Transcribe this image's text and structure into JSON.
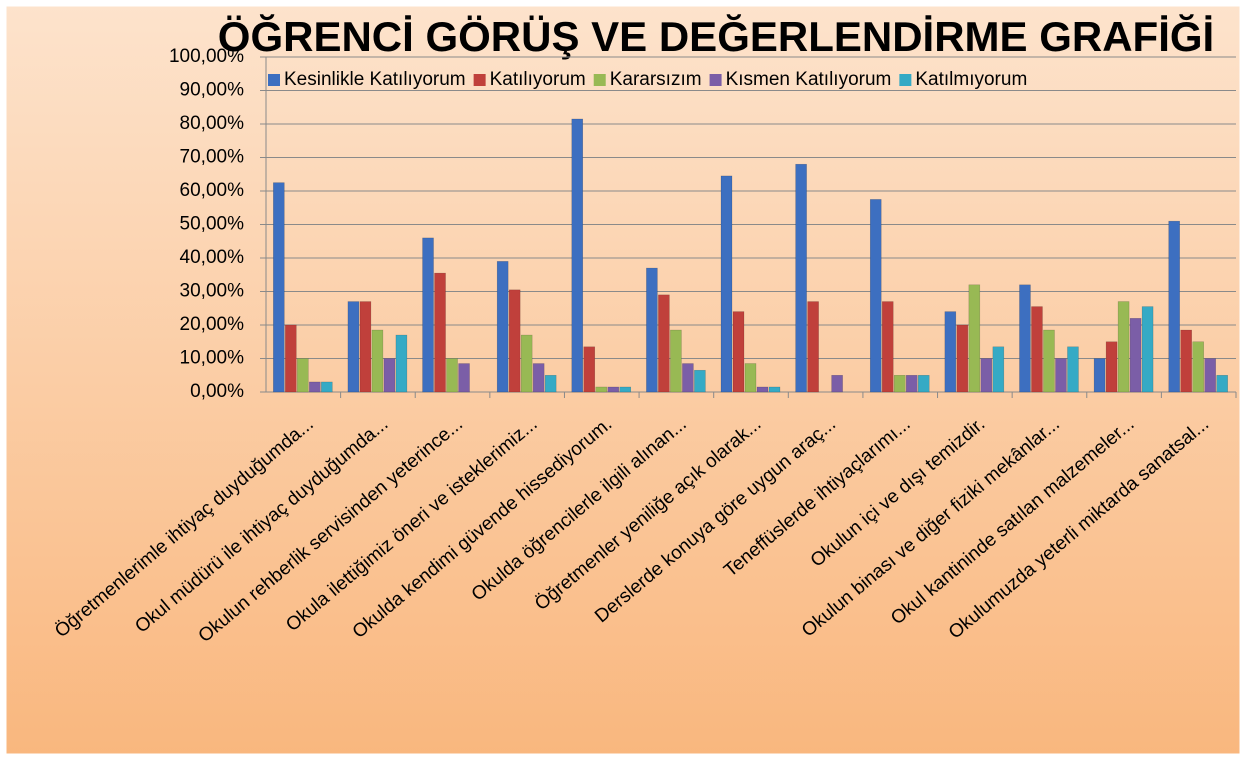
{
  "chart_data": {
    "type": "bar",
    "title": "ÖĞRENCİ GÖRÜŞ VE DEĞERLENDİRME GRAFİĞİ",
    "categories": [
      "Öğretmenlerimle ihtiyaç duyduğumda...",
      "Okul müdürü ile ihtiyaç duyduğumda...",
      "Okulun rehberlik servisinden yeterince...",
      "Okula ilettiğimiz öneri ve isteklerimiz...",
      "Okulda kendimi güvende hissediyorum.",
      "Okulda öğrencilerle ilgili alınan...",
      "Öğretmenler yeniliğe açık olarak...",
      "Derslerde konuya göre uygun araç...",
      "Teneffüslerde ihtiyaçlarımı...",
      "Okulun içi ve dışı temizdir.",
      "Okulun binası ve diğer fiziki mekânlar...",
      "Okul kantininde satılan malzemeler...",
      "Okulumuzda yeterli miktarda sanatsal..."
    ],
    "series": [
      {
        "name": "Kesinlikle Katılıyorum",
        "color": "#3d6fc0",
        "values": [
          62.5,
          27,
          46,
          39,
          81.5,
          37,
          64.5,
          68,
          57.5,
          24,
          32,
          10,
          51
        ]
      },
      {
        "name": "Katılıyorum",
        "color": "#c0403b",
        "values": [
          20,
          27,
          35.5,
          30.5,
          13.5,
          29,
          24,
          27,
          27,
          20,
          25.5,
          15,
          18.5
        ]
      },
      {
        "name": "Kararsızım",
        "color": "#98b954",
        "values": [
          10,
          18.5,
          10,
          17,
          1.5,
          18.5,
          8.5,
          0,
          5,
          32,
          18.5,
          27,
          15
        ]
      },
      {
        "name": "Kısmen Katılıyorum",
        "color": "#7b5ea7",
        "values": [
          3,
          10,
          8.5,
          8.5,
          1.5,
          8.5,
          1.5,
          5,
          5,
          10,
          10,
          22,
          10
        ]
      },
      {
        "name": "Katılmıyorum",
        "color": "#35aac5",
        "values": [
          3,
          17,
          0,
          5,
          1.5,
          6.5,
          1.5,
          0,
          5,
          13.5,
          13.5,
          25.5,
          5
        ]
      }
    ],
    "ylim": [
      0,
      100
    ],
    "yticks": [
      {
        "value": 0,
        "label": "0,00%"
      },
      {
        "value": 10,
        "label": "10,00%"
      },
      {
        "value": 20,
        "label": "20,00%"
      },
      {
        "value": 30,
        "label": "30,00%"
      },
      {
        "value": 40,
        "label": "40,00%"
      },
      {
        "value": 50,
        "label": "50,00%"
      },
      {
        "value": 60,
        "label": "60,00%"
      },
      {
        "value": 70,
        "label": "70,00%"
      },
      {
        "value": 80,
        "label": "80,00%"
      },
      {
        "value": 90,
        "label": "90,00%"
      },
      {
        "value": 100,
        "label": "100,00%"
      }
    ],
    "grid": true
  }
}
